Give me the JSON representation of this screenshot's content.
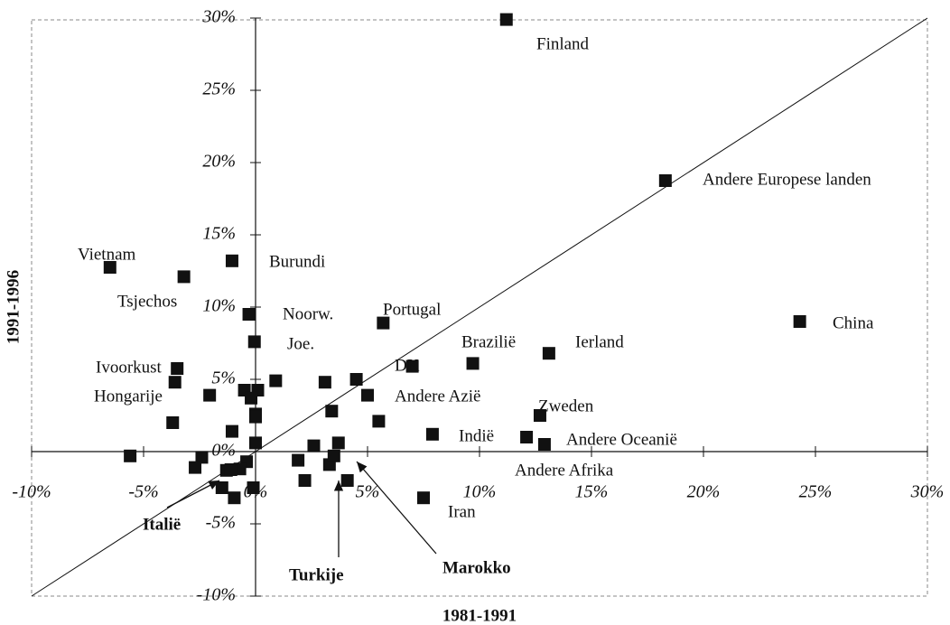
{
  "chart_data": {
    "type": "scatter",
    "x_label": "1981-1991",
    "y_label": "1991-1996",
    "xlim": [
      -10,
      30
    ],
    "ylim": [
      -10,
      30
    ],
    "xticks": [
      {
        "value": -10,
        "label": "-10%"
      },
      {
        "value": -5,
        "label": "-5%"
      },
      {
        "value": 0,
        "label": "0%"
      },
      {
        "value": 5,
        "label": "5%"
      },
      {
        "value": 10,
        "label": "10%"
      },
      {
        "value": 15,
        "label": "15%"
      },
      {
        "value": 20,
        "label": "20%"
      },
      {
        "value": 25,
        "label": "25%"
      },
      {
        "value": 30,
        "label": "30%"
      }
    ],
    "yticks": [
      {
        "value": -10,
        "label": "-10%"
      },
      {
        "value": -5,
        "label": "-5%"
      },
      {
        "value": 0,
        "label": "0%"
      },
      {
        "value": 5,
        "label": "5%"
      },
      {
        "value": 10,
        "label": "10%"
      },
      {
        "value": 15,
        "label": "15%"
      },
      {
        "value": 20,
        "label": "20%"
      },
      {
        "value": 25,
        "label": "25%"
      },
      {
        "value": 30,
        "label": "30%"
      }
    ],
    "series": [
      {
        "color": "#111111",
        "x": [
          11.2,
          18.3,
          24.3,
          13.1,
          9.7,
          7.0,
          5.7,
          12.7,
          12.1,
          12.9,
          7.5,
          5.0,
          5.5,
          4.5,
          3.1,
          3.4,
          7.9,
          -6.5,
          -3.2,
          -1.05,
          -0.3,
          -0.05,
          -3.5,
          -3.6,
          -3.7,
          -2.05,
          0.9,
          -0.5,
          0.1,
          -0.2,
          0.0,
          0.0,
          -1.05,
          0.0,
          -5.6,
          -2.4,
          -2.7,
          -0.4,
          -0.7,
          -1.3,
          -1.1,
          -1.5,
          -0.95,
          -0.1,
          1.9,
          2.2,
          2.6,
          3.7,
          3.3,
          3.5,
          4.1
        ],
        "values": [
          29.9,
          18.75,
          9.0,
          6.8,
          6.1,
          5.9,
          8.9,
          2.5,
          1.0,
          0.5,
          -3.2,
          3.9,
          2.1,
          5.0,
          4.8,
          2.8,
          1.2,
          12.75,
          12.1,
          13.2,
          9.5,
          7.6,
          5.75,
          4.8,
          2.0,
          3.9,
          4.9,
          4.25,
          4.25,
          3.7,
          2.6,
          2.4,
          1.4,
          0.6,
          -0.3,
          -0.4,
          -1.1,
          -0.7,
          -1.2,
          -1.3,
          -1.25,
          -2.5,
          -3.2,
          -2.5,
          -0.6,
          -2.0,
          0.4,
          0.6,
          -0.9,
          -0.3,
          -2.0
        ]
      }
    ],
    "annotations": [
      "Finland",
      "Andere Europese landen",
      "China",
      "Ierland",
      "Brazilië",
      "DK",
      "Portugal",
      "Zweden",
      "Indië",
      "Andere Oceanië",
      "Andere Afrika",
      "Iran",
      "Andere Azië",
      "Vietnam",
      "Tsjechos",
      "Burundi",
      "Noorw.",
      "Joe.",
      "Ivoorkust",
      "Hongarije",
      "Italië",
      "Turkije",
      "Marokko"
    ]
  }
}
